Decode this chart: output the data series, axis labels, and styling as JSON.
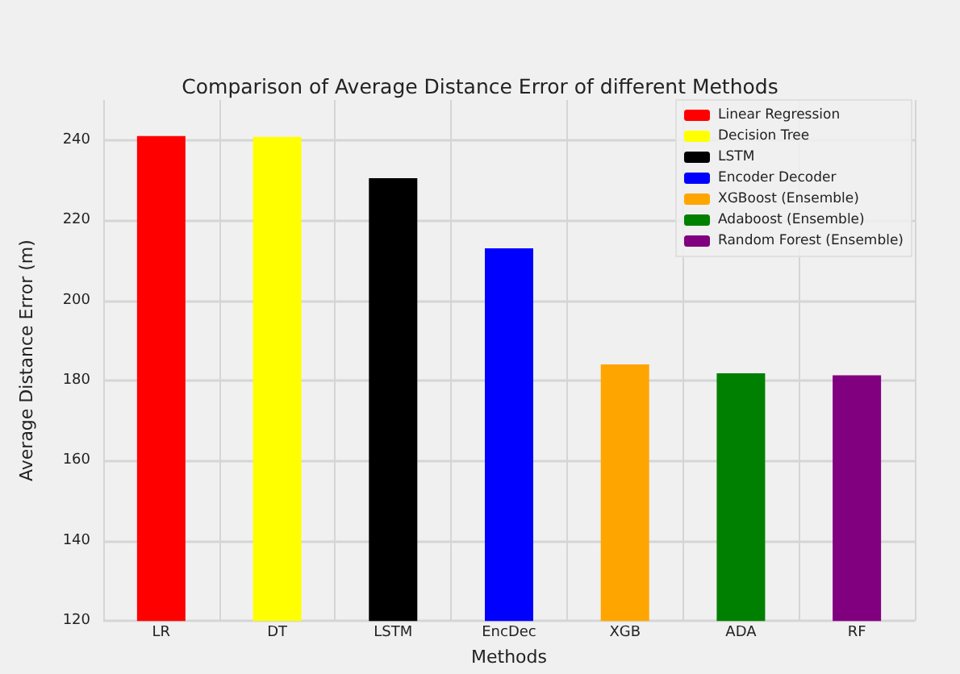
{
  "chart_data": {
    "type": "bar",
    "title": "Comparison of Average Distance Error of different Methods",
    "xlabel": "Methods",
    "ylabel": "Average Distance Error (m)",
    "categories": [
      "LR",
      "DT",
      "LSTM",
      "EncDec",
      "XGB",
      "ADA",
      "RF"
    ],
    "series": [
      {
        "name": "Linear Regression",
        "color": "#ff0000",
        "values": [
          241,
          null,
          null,
          null,
          null,
          null,
          null
        ]
      },
      {
        "name": "Decision Tree",
        "color": "#ffff00",
        "values": [
          null,
          240.8,
          null,
          null,
          null,
          null,
          null
        ]
      },
      {
        "name": "LSTM",
        "color": "#000000",
        "values": [
          null,
          null,
          230.5,
          null,
          null,
          null,
          null
        ]
      },
      {
        "name": "Encoder Decoder",
        "color": "#0000ff",
        "values": [
          null,
          null,
          null,
          213,
          null,
          null,
          null
        ]
      },
      {
        "name": "XGBoost (Ensemble)",
        "color": "#ffa500",
        "values": [
          null,
          null,
          null,
          null,
          184,
          null,
          null
        ]
      },
      {
        "name": "Adaboost (Ensemble)",
        "color": "#008000",
        "values": [
          null,
          null,
          null,
          null,
          null,
          181.8,
          null
        ]
      },
      {
        "name": "Random Forest (Ensemble)",
        "color": "#800080",
        "values": [
          null,
          null,
          null,
          null,
          null,
          null,
          181.3
        ]
      }
    ],
    "ylim": [
      120,
      250
    ],
    "yticks": [
      120,
      140,
      160,
      180,
      200,
      220,
      240
    ],
    "grid": true,
    "legend": "top right"
  }
}
